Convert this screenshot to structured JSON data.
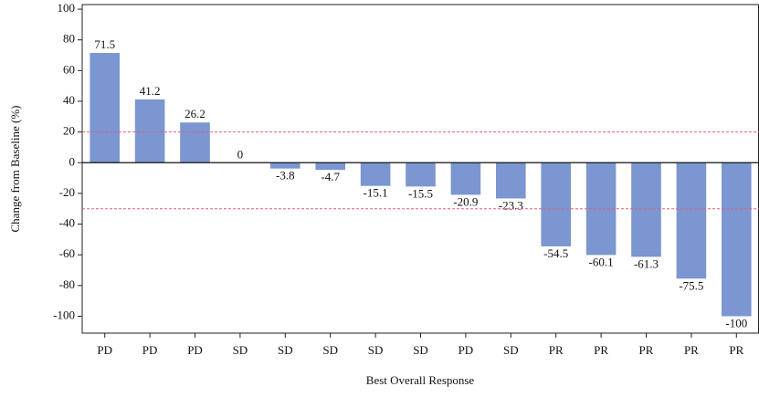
{
  "chart_data": {
    "type": "bar",
    "xlabel": "Best Overall Response",
    "ylabel": "Change from Baseline (%)",
    "categories": [
      "PD",
      "PD",
      "PD",
      "SD",
      "SD",
      "SD",
      "SD",
      "SD",
      "PD",
      "SD",
      "PR",
      "PR",
      "PR",
      "PR",
      "PR"
    ],
    "values": [
      71.5,
      41.2,
      26.2,
      0,
      -3.8,
      -4.7,
      -15.1,
      -15.5,
      -20.9,
      -23.3,
      -54.5,
      -60.1,
      -61.3,
      -75.5,
      -100
    ],
    "color": "#7b96d0",
    "ylim": [
      -111,
      103
    ],
    "yticks": [
      -100,
      -80,
      -60,
      -40,
      -20,
      0,
      20,
      40,
      60,
      80,
      100
    ],
    "reference_lines": [
      20,
      -30
    ],
    "reference_color": "#e0607a"
  }
}
